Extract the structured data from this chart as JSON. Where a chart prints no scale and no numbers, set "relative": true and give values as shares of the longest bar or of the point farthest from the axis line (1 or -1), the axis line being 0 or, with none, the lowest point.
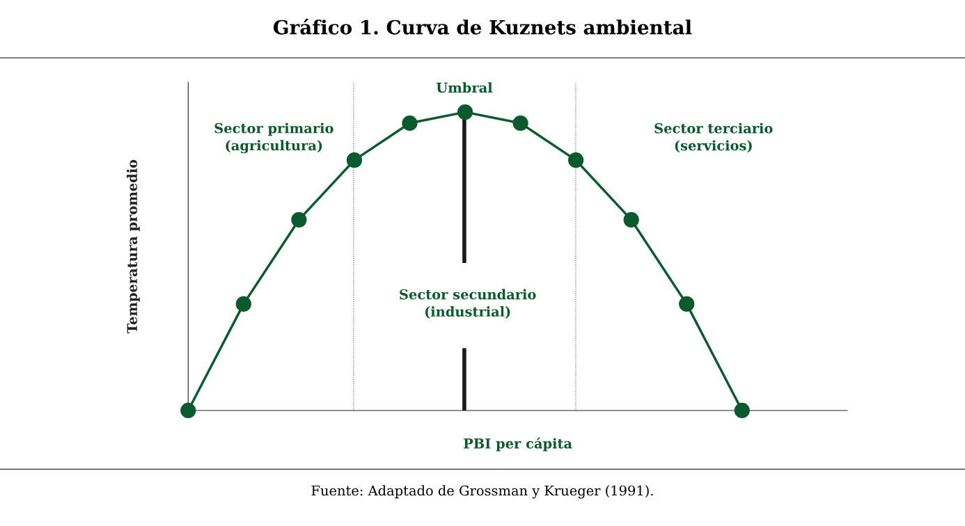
{
  "chart_data": {
    "type": "line",
    "title": "Gráfico 1. Curva de Kuznets ambiental",
    "xlabel": "PBI per cápita",
    "ylabel": "Temperatura promedio",
    "relative": true,
    "categories": [
      null,
      null,
      null,
      null,
      null,
      null,
      null,
      null,
      null,
      null,
      null
    ],
    "series": [
      {
        "color": "#0b5a2e",
        "values": [
          0,
          0.357,
          0.639,
          0.839,
          0.963,
          1,
          0.963,
          0.839,
          0.639,
          0.357,
          0
        ]
      }
    ],
    "marker": "circle",
    "line_style": "solid",
    "grid": "x",
    "annotations": [
      "Sector primario\n(agricultura)",
      "Sector secundario\n(industrial)",
      "Sector terciario\n(servicios)",
      "Umbral",
      "Fuente: Adaptado de Grossman y Krueger (1991)."
    ]
  }
}
